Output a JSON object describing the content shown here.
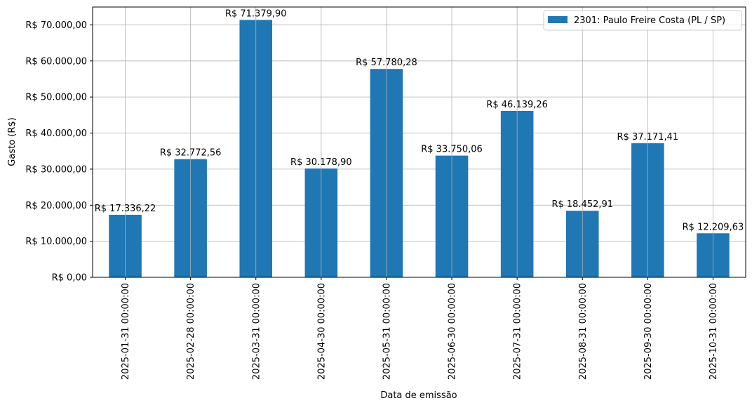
{
  "chart_data": {
    "type": "bar",
    "xlabel": "Data de emissão",
    "ylabel": "Gasto (R$)",
    "categories": [
      "2025-01-31 00:00:00",
      "2025-02-28 00:00:00",
      "2025-03-31 00:00:00",
      "2025-04-30 00:00:00",
      "2025-05-31 00:00:00",
      "2025-06-30 00:00:00",
      "2025-07-31 00:00:00",
      "2025-08-31 00:00:00",
      "2025-09-30 00:00:00",
      "2025-10-31 00:00:00"
    ],
    "series": [
      {
        "name": "2301: Paulo Freire Costa (PL / SP)",
        "color": "#1f77b4",
        "values": [
          17336.22,
          32772.56,
          71379.9,
          30178.9,
          57780.28,
          33750.06,
          46139.26,
          18452.91,
          37171.41,
          12209.63
        ],
        "labels": [
          "R$ 17.336,22",
          "R$ 32.772,56",
          "R$ 71.379,90",
          "R$ 30.178,90",
          "R$ 57.780,28",
          "R$ 33.750,06",
          "R$ 46.139,26",
          "R$ 18.452,91",
          "R$ 37.171,41",
          "R$ 12.209,63"
        ]
      }
    ],
    "ylim": [
      0,
      74950
    ],
    "yticks": [
      0,
      10000,
      20000,
      30000,
      40000,
      50000,
      60000,
      70000
    ],
    "ytick_labels": [
      "R$ 0,00",
      "R$ 10.000,00",
      "R$ 20.000,00",
      "R$ 30.000,00",
      "R$ 40.000,00",
      "R$ 50.000,00",
      "R$ 60.000,00",
      "R$ 70.000,00"
    ],
    "grid": true,
    "legend_position": "top-right"
  }
}
